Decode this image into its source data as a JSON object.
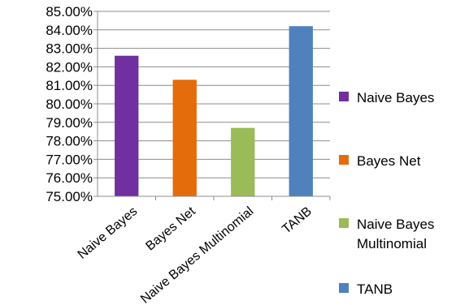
{
  "chart_data": {
    "type": "bar",
    "categories": [
      "Naive Bayes",
      "Bayes Net",
      "Naive Bayes Multinomial",
      "TANB"
    ],
    "values": [
      82.6,
      81.3,
      78.7,
      84.2
    ],
    "y_ticks": [
      "75.00%",
      "76.00%",
      "77.00%",
      "78.00%",
      "79.00%",
      "80.00%",
      "81.00%",
      "82.00%",
      "83.00%",
      "84.00%",
      "85.00%"
    ],
    "ylim": [
      75,
      85
    ],
    "grid": true,
    "legend": {
      "position": "right",
      "entries": [
        {
          "lines": [
            "Naive Bayes"
          ],
          "color": "#7030A0"
        },
        {
          "lines": [
            "Bayes Net"
          ],
          "color": "#E46C0A"
        },
        {
          "lines": [
            "Naive Bayes",
            "Multinomial"
          ],
          "color": "#9BBB59"
        },
        {
          "lines": [
            "TANB"
          ],
          "color": "#4F81BD"
        }
      ]
    },
    "colors": [
      "#7030A0",
      "#E46C0A",
      "#9BBB59",
      "#4F81BD"
    ]
  }
}
